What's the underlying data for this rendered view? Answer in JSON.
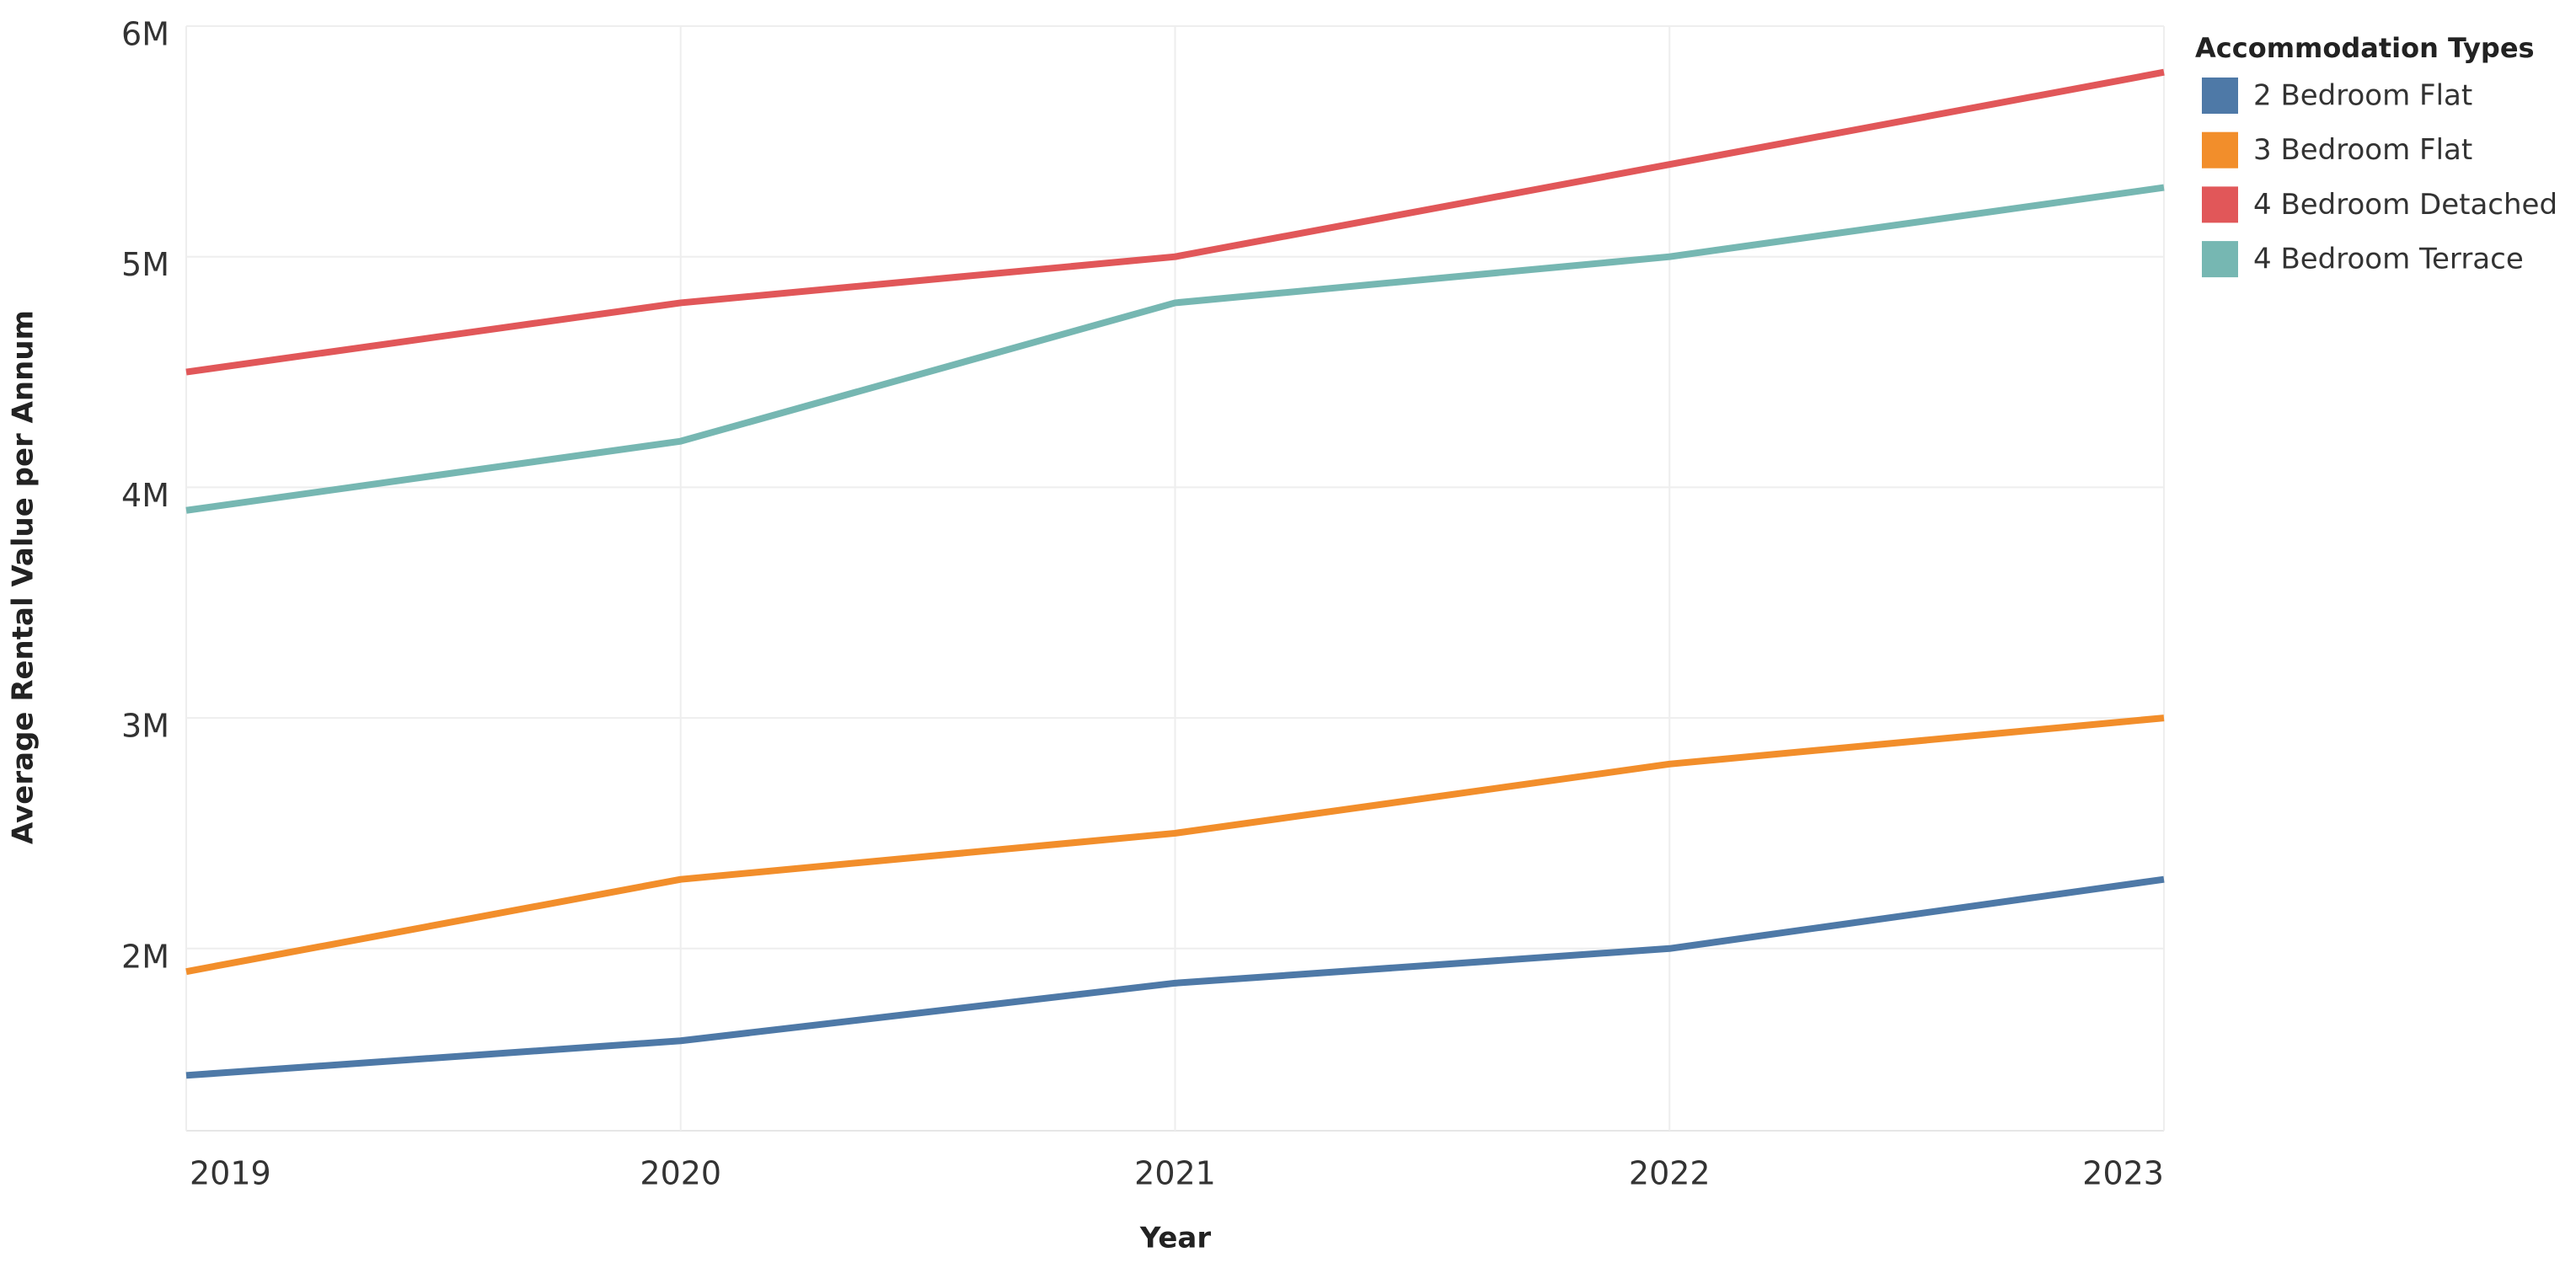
{
  "chart_data": {
    "type": "line",
    "x_label": "Year",
    "y_label": "Average Rental Value per Annum",
    "legend_title": "Accommodation Types",
    "legend": "right",
    "grid": true,
    "x": [
      2019,
      2020,
      2021,
      2022,
      2023
    ],
    "xlim": [
      2019,
      2023
    ],
    "xticks": [
      2019,
      2020,
      2021,
      2022,
      2023
    ],
    "ylim": [
      1210000,
      6000000
    ],
    "yticks": [
      {
        "value": 2000000,
        "label": "2M"
      },
      {
        "value": 3000000,
        "label": "3M"
      },
      {
        "value": 4000000,
        "label": "4M"
      },
      {
        "value": 5000000,
        "label": "5M"
      },
      {
        "value": 6000000,
        "label": "6M"
      }
    ],
    "series": [
      {
        "name": "2 Bedroom Flat",
        "color": "#4e79a7",
        "values": [
          1450000,
          1600000,
          1850000,
          2000000,
          2300000
        ]
      },
      {
        "name": "3 Bedroom Flat",
        "color": "#f28e2b",
        "values": [
          1900000,
          2300000,
          2500000,
          2800000,
          3000000
        ]
      },
      {
        "name": "4 Bedroom Detached",
        "color": "#e15759",
        "values": [
          4500000,
          4800000,
          5000000,
          5400000,
          5800000
        ]
      },
      {
        "name": "4 Bedroom Terrace",
        "color": "#76b7b2",
        "values": [
          3900000,
          4200000,
          4800000,
          5000000,
          5300000
        ]
      }
    ]
  }
}
